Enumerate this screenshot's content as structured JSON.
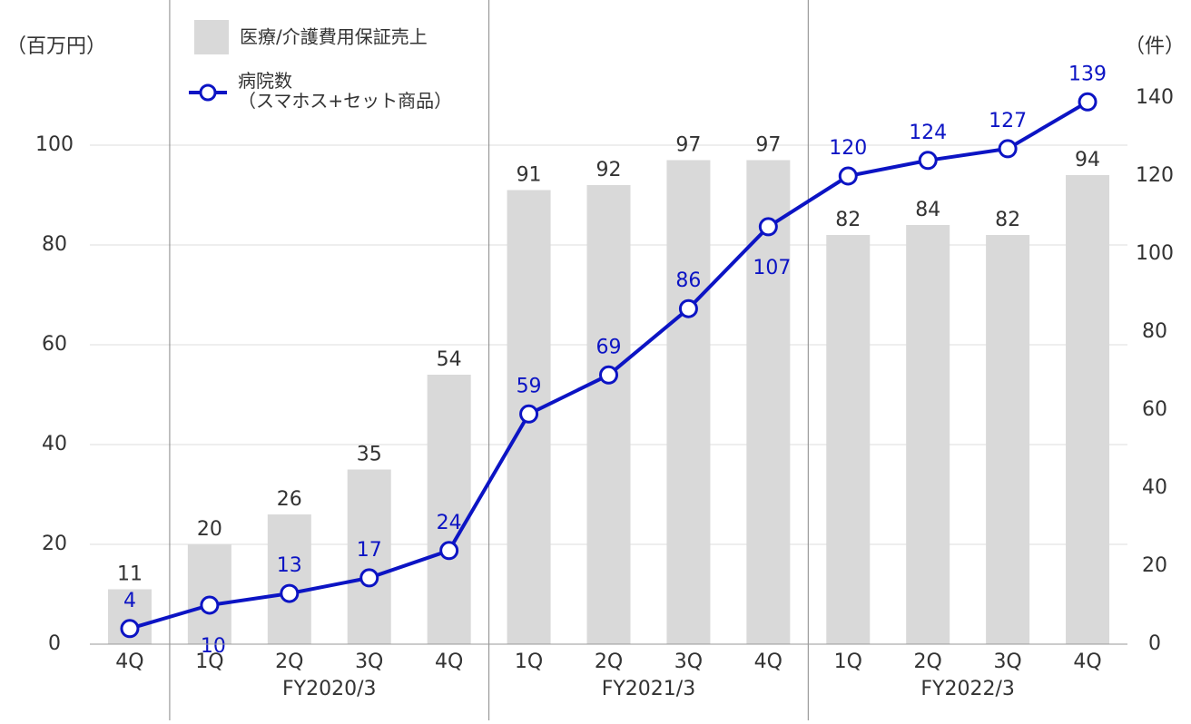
{
  "chart_data": {
    "type": "bar+line",
    "y_unit": "（百万円）",
    "y2_unit": "（件）",
    "categories": [
      "4Q",
      "1Q",
      "2Q",
      "3Q",
      "4Q",
      "1Q",
      "2Q",
      "3Q",
      "4Q",
      "1Q",
      "2Q",
      "3Q",
      "4Q"
    ],
    "category_groups": [
      "FY2020/3",
      "FY2021/3",
      "FY2022/3"
    ],
    "series": [
      {
        "name": "医療/介護費用保証売上",
        "type": "bar",
        "color": "#d9d9d9",
        "values": [
          11,
          20,
          26,
          35,
          54,
          91,
          92,
          97,
          97,
          82,
          84,
          82,
          94
        ]
      },
      {
        "name": "病院数\n（スマホス+セット商品）",
        "type": "line",
        "axis": "y2",
        "color": "#0c14c4",
        "values": [
          4,
          10,
          13,
          17,
          24,
          59,
          69,
          86,
          107,
          120,
          124,
          127,
          139
        ]
      }
    ],
    "ylim": [
      0,
      100
    ],
    "yticks": [
      0,
      20,
      40,
      60,
      80,
      100
    ],
    "y2lim": [
      0,
      140
    ],
    "y2ticks": [
      0,
      20,
      40,
      60,
      80,
      100,
      120,
      140
    ],
    "grid": true
  }
}
